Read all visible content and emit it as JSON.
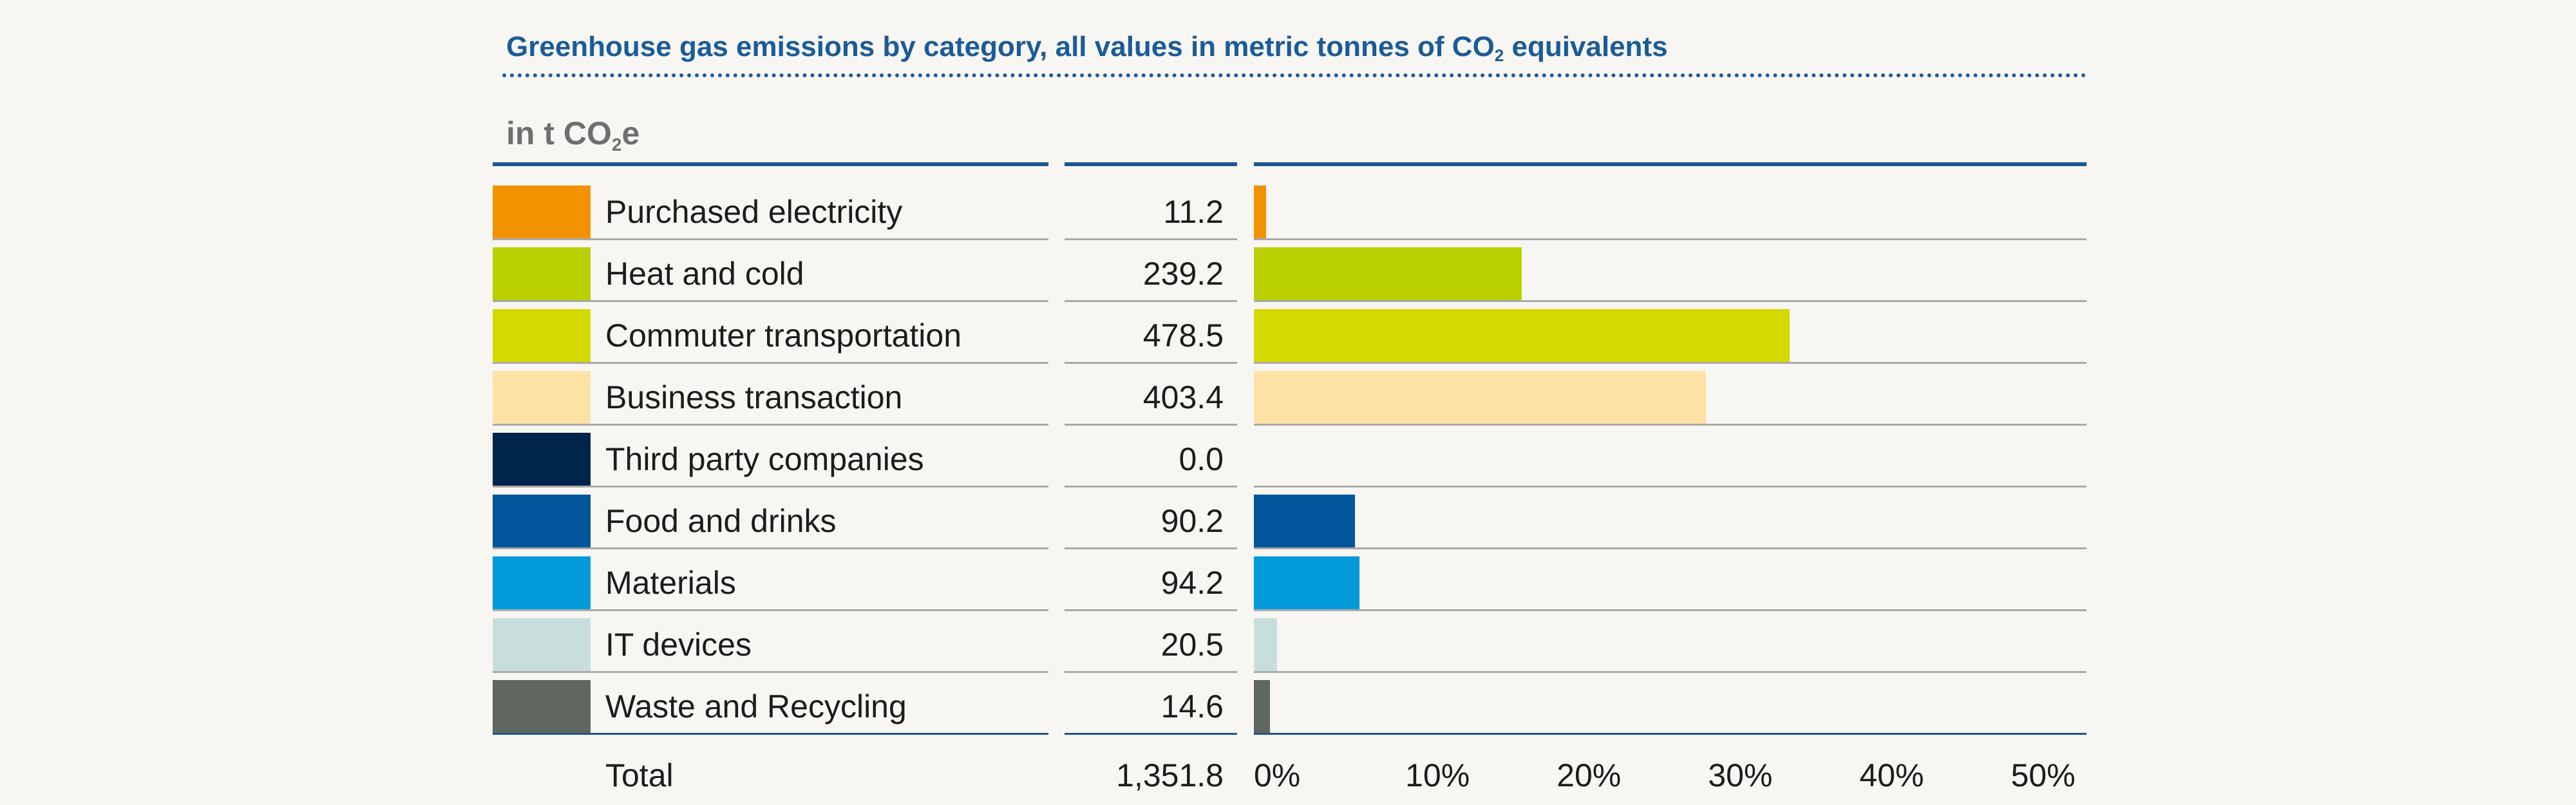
{
  "chart_data": {
    "type": "bar",
    "orientation": "horizontal",
    "title": "Greenhouse gas emissions by category, all values in metric tonnes of CO",
    "title_subscript": "2",
    "title_suffix": " equivalents",
    "unit_label": "in t CO",
    "unit_subscript": "2",
    "unit_suffix": "e",
    "categories": [
      "Purchased electricity",
      "Heat and cold",
      "Commuter transportation",
      "Business transaction",
      "Third party companies",
      "Food and drinks",
      "Materials",
      "IT devices",
      "Waste and Recycling"
    ],
    "values": [
      11.2,
      239.2,
      478.5,
      403.4,
      0.0,
      90.2,
      94.2,
      20.5,
      14.6
    ],
    "value_labels": [
      "11.2",
      "239.2",
      "478.5",
      "403.4",
      "0.0",
      "90.2",
      "94.2",
      "20.5",
      "14.6"
    ],
    "colors": [
      "#f39200",
      "#b9cf00",
      "#d4da00",
      "#fce3a5",
      "#00254b",
      "#00559b",
      "#009ad9",
      "#c8dedd",
      "#5f6660"
    ],
    "total_label": "Total",
    "total_value": "1,351.8",
    "total": 1351.8,
    "xaxis": {
      "unit": "percent",
      "range": [
        0,
        55
      ],
      "ticks": [
        0,
        10,
        20,
        30,
        40,
        50
      ],
      "tick_labels": [
        "0%",
        "10%",
        "20%",
        "30%",
        "40%",
        "50%"
      ]
    },
    "grid": false,
    "legend": "none"
  }
}
